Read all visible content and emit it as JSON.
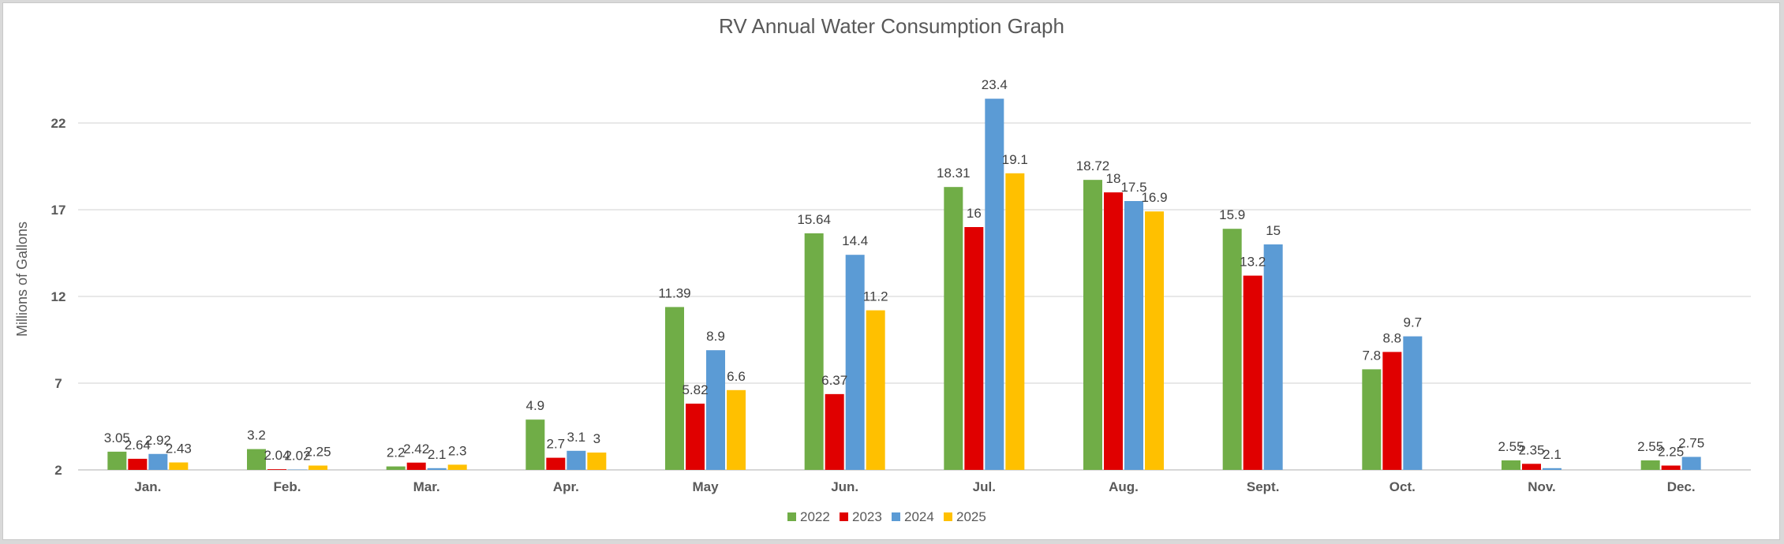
{
  "chart_data": {
    "type": "bar",
    "title": "RV Annual Water Consumption Graph",
    "xlabel": "",
    "ylabel": "Millions of Gallons",
    "ylim": [
      2,
      25
    ],
    "yticks": [
      "2",
      "7",
      "12",
      "17",
      "22"
    ],
    "grid": true,
    "legend_position": "bottom",
    "categories": [
      "Jan.",
      "Feb.",
      "Mar.",
      "Apr.",
      "May",
      "Jun.",
      "Jul.",
      "Aug.",
      "Sept.",
      "Oct.",
      "Nov.",
      "Dec."
    ],
    "series": [
      {
        "name": "2022",
        "color": "#70ad47",
        "values": [
          3.05,
          3.2,
          2.2,
          4.9,
          11.39,
          15.64,
          18.31,
          18.72,
          15.9,
          7.8,
          2.55,
          2.55
        ],
        "labels": [
          "3.05",
          "3.2",
          "2.2",
          "4.9",
          "11.39",
          "15.64",
          "18.31",
          "18.72",
          "15.9",
          "7.8",
          "2.55",
          "2.55"
        ]
      },
      {
        "name": "2023",
        "color": "#e00000",
        "values": [
          2.64,
          2.04,
          2.42,
          2.7,
          5.82,
          6.37,
          16,
          18,
          13.2,
          8.8,
          2.35,
          2.25
        ],
        "labels": [
          "2.64",
          "2.04",
          "2.42",
          "2.7",
          "5.82",
          "6.37",
          "16",
          "18",
          "13.2",
          "8.8",
          "2.35",
          "2.25"
        ]
      },
      {
        "name": "2024",
        "color": "#5b9bd5",
        "values": [
          2.92,
          2.02,
          2.1,
          3.1,
          8.9,
          14.4,
          23.4,
          17.5,
          15,
          9.7,
          2.1,
          2.75
        ],
        "labels": [
          "2.92",
          "2.02",
          "2.1",
          "3.1",
          "8.9",
          "14.4",
          "23.4",
          "17.5",
          "15",
          "9.7",
          "2.1",
          "2.75"
        ]
      },
      {
        "name": "2025",
        "color": "#ffc000",
        "values": [
          2.43,
          2.25,
          2.3,
          3,
          6.6,
          11.2,
          19.1,
          16.9,
          null,
          null,
          null,
          null
        ],
        "labels": [
          "2.43",
          "2.25",
          "2.3",
          "3",
          "6.6",
          "11.2",
          "19.1",
          "16.9",
          "",
          "",
          "",
          ""
        ]
      }
    ]
  }
}
